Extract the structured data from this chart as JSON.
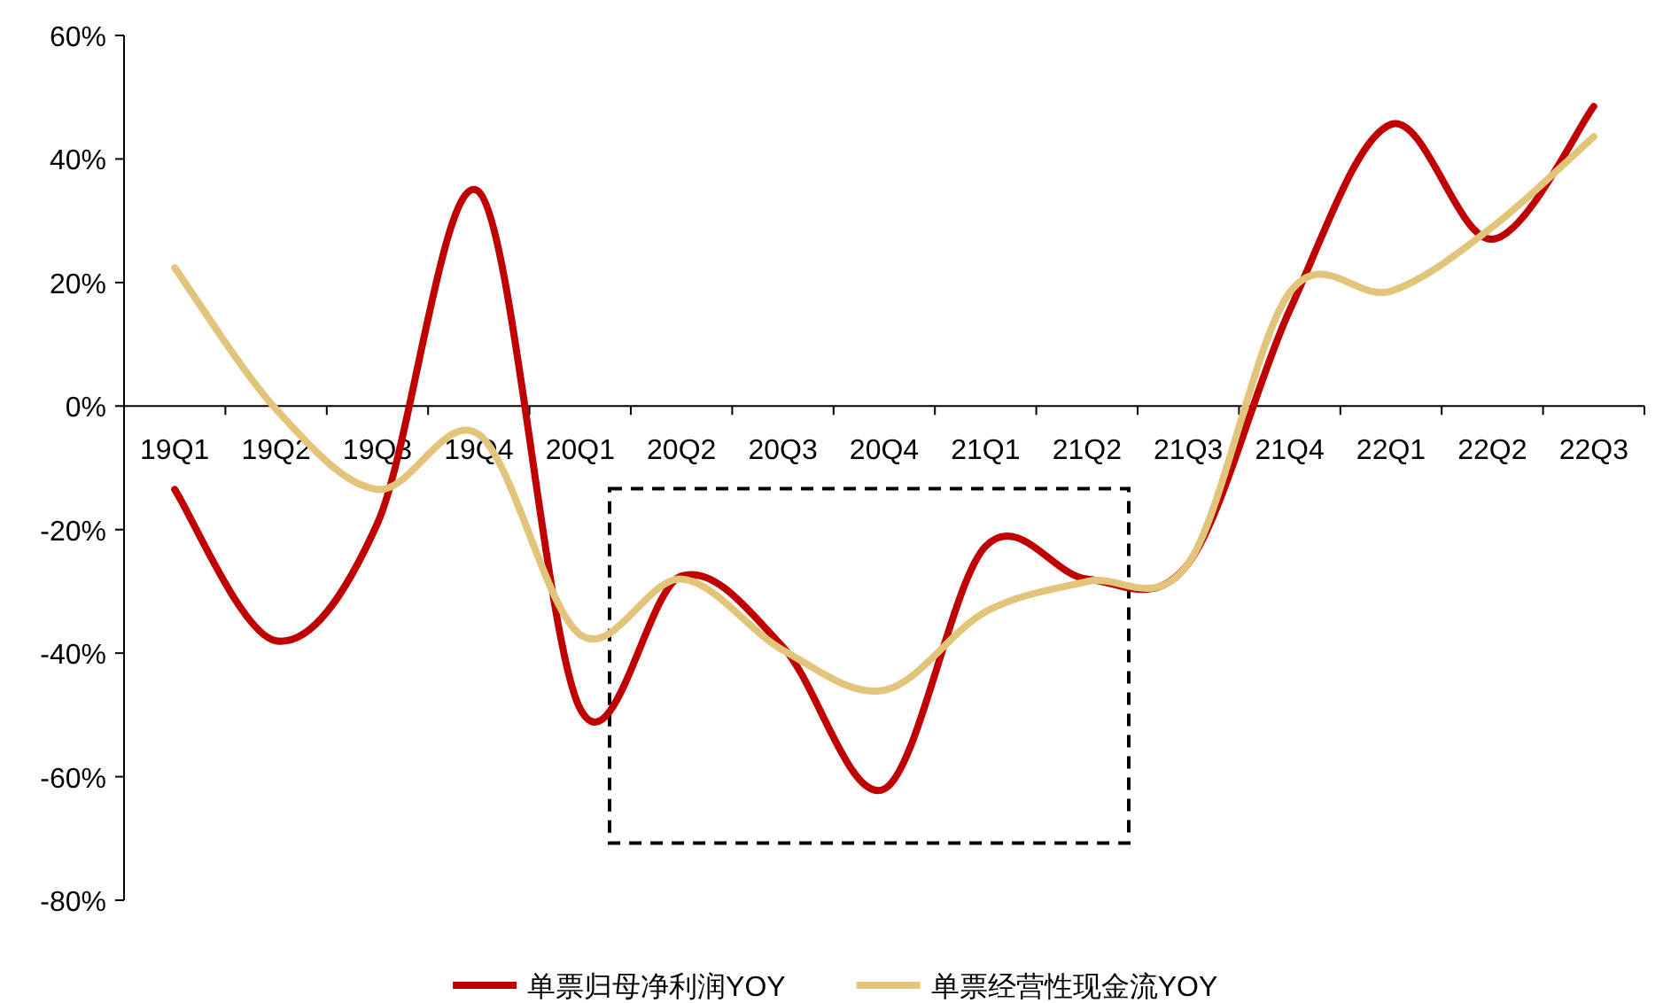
{
  "chart_data": {
    "type": "line",
    "categories": [
      "19Q1",
      "19Q2",
      "19Q3",
      "19Q4",
      "20Q1",
      "20Q2",
      "20Q3",
      "20Q4",
      "21Q1",
      "21Q2",
      "21Q3",
      "21Q4",
      "22Q1",
      "22Q2",
      "22Q3"
    ],
    "series": [
      {
        "name": "单票归母净利润YOY",
        "color": "#c00000",
        "values": [
          -13.5,
          -38,
          -19,
          34.7,
          -49,
          -27.5,
          -39,
          -62,
          -22.7,
          -28,
          -25.5,
          15.5,
          45.6,
          27,
          48.5
        ]
      },
      {
        "name": "单票经营性现金流YOY",
        "color": "#e2c47a",
        "values": [
          22.4,
          -0.5,
          -13.5,
          -4.6,
          -37,
          -28,
          -39.5,
          -46,
          -33.3,
          -28.4,
          -25.5,
          18.4,
          18.6,
          29,
          43.6
        ]
      }
    ],
    "ylim": [
      -80,
      60
    ],
    "yticks": [
      {
        "value": -80,
        "label": "-80%"
      },
      {
        "value": -60,
        "label": "-60%"
      },
      {
        "value": -40,
        "label": "-40%"
      },
      {
        "value": -20,
        "label": "-20%"
      },
      {
        "value": 0,
        "label": "0%"
      },
      {
        "value": 20,
        "label": "20%"
      },
      {
        "value": 40,
        "label": "40%"
      },
      {
        "value": 60,
        "label": "60%"
      }
    ],
    "grid": false,
    "legend": "bottom",
    "marker": "none",
    "line_style": "solid"
  }
}
